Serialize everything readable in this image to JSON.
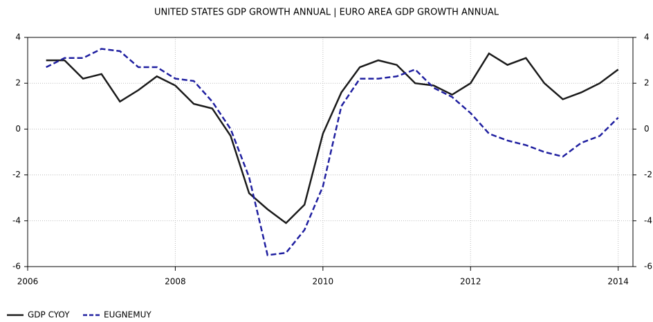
{
  "chart_data": {
    "type": "line",
    "title": "UNITED STATES GDP GROWTH ANNUAL |  EURO AREA GDP GROWTH ANNUAL",
    "x": [
      2006.25,
      2006.5,
      2006.75,
      2007,
      2007.25,
      2007.5,
      2007.75,
      2008,
      2008.25,
      2008.5,
      2008.75,
      2009,
      2009.25,
      2009.5,
      2009.75,
      2010,
      2010.25,
      2010.5,
      2010.75,
      2011,
      2011.25,
      2011.5,
      2011.75,
      2012,
      2012.25,
      2012.5,
      2012.75,
      2013,
      2013.25,
      2013.5,
      2013.75,
      2014
    ],
    "series": [
      {
        "name": "GDP CYOY",
        "color": "#1a1a1a",
        "dash": "solid",
        "values": [
          3.0,
          3.0,
          2.2,
          2.4,
          1.2,
          1.7,
          2.3,
          1.9,
          1.1,
          0.9,
          -0.3,
          -2.8,
          -3.5,
          -4.1,
          -3.3,
          -0.2,
          1.6,
          2.7,
          3.0,
          2.8,
          2.0,
          1.9,
          1.5,
          2.0,
          3.3,
          2.8,
          3.1,
          2.0,
          1.3,
          1.6,
          2.0,
          2.6
        ]
      },
      {
        "name": "EUGNEMUY",
        "color": "#1f1fa0",
        "dash": "dashed",
        "axis": "y2",
        "values": [
          2.7,
          3.1,
          3.1,
          3.5,
          3.4,
          2.7,
          2.7,
          2.2,
          2.1,
          1.2,
          0.0,
          -2.1,
          -5.5,
          -5.4,
          -4.4,
          -2.5,
          1.0,
          2.2,
          2.2,
          2.3,
          2.6,
          1.8,
          1.4,
          0.7,
          -0.2,
          -0.5,
          -0.7,
          -1.0,
          -1.2,
          -0.6,
          -0.3,
          0.5
        ]
      }
    ],
    "xlim": [
      2006,
      2014.2
    ],
    "xticks": [
      2006,
      2008,
      2010,
      2012,
      2014
    ],
    "ylim": [
      -6,
      4
    ],
    "yticks": [
      -6,
      -4,
      -2,
      0,
      2,
      4
    ],
    "y2lim": [
      -6,
      4
    ],
    "y2ticks": [
      -6,
      -4,
      -2,
      0,
      2,
      4
    ],
    "grid": true,
    "legend": "bottom-left"
  }
}
